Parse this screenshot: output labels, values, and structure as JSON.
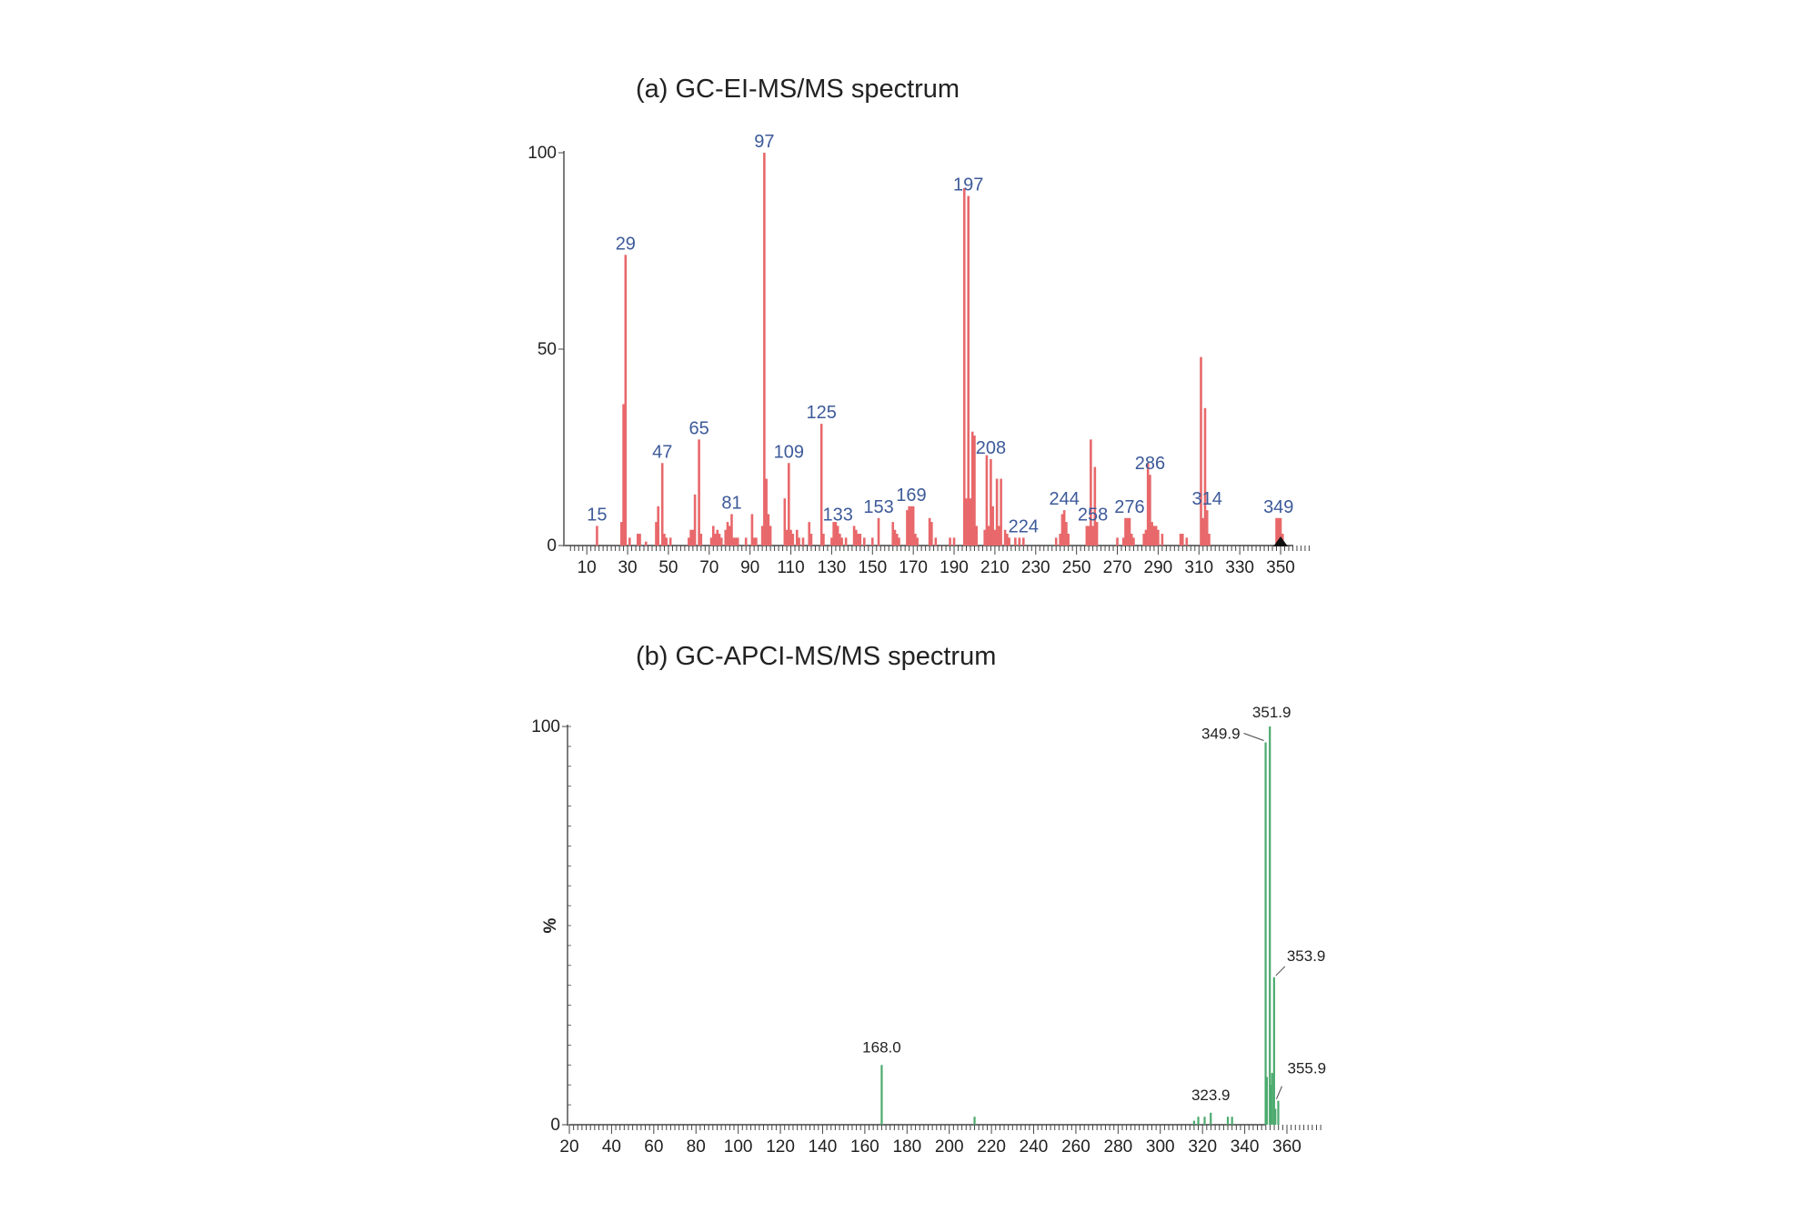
{
  "chart_data": [
    {
      "type": "bar",
      "title": "(a) GC-EI-MS/MS spectrum",
      "xlabel": "",
      "ylabel": "",
      "xlim": [
        1,
        364
      ],
      "ylim": [
        0,
        100
      ],
      "xticks": [
        10,
        30,
        50,
        70,
        90,
        110,
        130,
        150,
        170,
        190,
        210,
        230,
        250,
        270,
        290,
        310,
        330,
        350
      ],
      "yticks": [
        0,
        50,
        100
      ],
      "color": "#e8686b",
      "label_color": "#3d5a99",
      "marker_at": 350,
      "peaks": [
        [
          15,
          5
        ],
        [
          27,
          6
        ],
        [
          28,
          36
        ],
        [
          29,
          74
        ],
        [
          31,
          2
        ],
        [
          35,
          3
        ],
        [
          36,
          3
        ],
        [
          39,
          1
        ],
        [
          44,
          6
        ],
        [
          45,
          10
        ],
        [
          47,
          21
        ],
        [
          48,
          3
        ],
        [
          49,
          2
        ],
        [
          51,
          2
        ],
        [
          60,
          2
        ],
        [
          61,
          4
        ],
        [
          62,
          4
        ],
        [
          63,
          13
        ],
        [
          65,
          27
        ],
        [
          66,
          3
        ],
        [
          71,
          2
        ],
        [
          72,
          5
        ],
        [
          73,
          3
        ],
        [
          74,
          4
        ],
        [
          75,
          3
        ],
        [
          76,
          2
        ],
        [
          78,
          4
        ],
        [
          79,
          6
        ],
        [
          80,
          5
        ],
        [
          81,
          8
        ],
        [
          82,
          2
        ],
        [
          83,
          2
        ],
        [
          84,
          2
        ],
        [
          88,
          2
        ],
        [
          91,
          8
        ],
        [
          92,
          2
        ],
        [
          93,
          2
        ],
        [
          96,
          5
        ],
        [
          97,
          100
        ],
        [
          98,
          17
        ],
        [
          99,
          8
        ],
        [
          100,
          5
        ],
        [
          107,
          12
        ],
        [
          108,
          4
        ],
        [
          109,
          21
        ],
        [
          110,
          4
        ],
        [
          111,
          3
        ],
        [
          113,
          4
        ],
        [
          114,
          2
        ],
        [
          116,
          2
        ],
        [
          119,
          6
        ],
        [
          120,
          3
        ],
        [
          125,
          31
        ],
        [
          126,
          3
        ],
        [
          130,
          2
        ],
        [
          131,
          6
        ],
        [
          132,
          6
        ],
        [
          133,
          5
        ],
        [
          134,
          3
        ],
        [
          135,
          2
        ],
        [
          137,
          2
        ],
        [
          141,
          5
        ],
        [
          142,
          4
        ],
        [
          143,
          3
        ],
        [
          144,
          3
        ],
        [
          146,
          2
        ],
        [
          150,
          2
        ],
        [
          153,
          7
        ],
        [
          160,
          6
        ],
        [
          161,
          4
        ],
        [
          162,
          3
        ],
        [
          163,
          2
        ],
        [
          167,
          9
        ],
        [
          168,
          10
        ],
        [
          169,
          10
        ],
        [
          170,
          10
        ],
        [
          171,
          3
        ],
        [
          172,
          2
        ],
        [
          178,
          7
        ],
        [
          179,
          6
        ],
        [
          181,
          2
        ],
        [
          188,
          2
        ],
        [
          190,
          2
        ],
        [
          195,
          91
        ],
        [
          196,
          12
        ],
        [
          197,
          89
        ],
        [
          198,
          12
        ],
        [
          199,
          29
        ],
        [
          200,
          28
        ],
        [
          201,
          5
        ],
        [
          205,
          4
        ],
        [
          206,
          23
        ],
        [
          207,
          5
        ],
        [
          208,
          22
        ],
        [
          209,
          10
        ],
        [
          210,
          4
        ],
        [
          211,
          17
        ],
        [
          212,
          5
        ],
        [
          213,
          17
        ],
        [
          215,
          4
        ],
        [
          216,
          3
        ],
        [
          217,
          2
        ],
        [
          220,
          2
        ],
        [
          222,
          2
        ],
        [
          224,
          2
        ],
        [
          240,
          2
        ],
        [
          242,
          3
        ],
        [
          243,
          8
        ],
        [
          244,
          9
        ],
        [
          245,
          6
        ],
        [
          246,
          3
        ],
        [
          255,
          5
        ],
        [
          256,
          5
        ],
        [
          257,
          27
        ],
        [
          258,
          5
        ],
        [
          259,
          20
        ],
        [
          260,
          6
        ],
        [
          270,
          2
        ],
        [
          273,
          2
        ],
        [
          274,
          7
        ],
        [
          275,
          7
        ],
        [
          276,
          7
        ],
        [
          277,
          3
        ],
        [
          278,
          2
        ],
        [
          283,
          3
        ],
        [
          284,
          4
        ],
        [
          285,
          21
        ],
        [
          286,
          18
        ],
        [
          287,
          6
        ],
        [
          288,
          5
        ],
        [
          289,
          5
        ],
        [
          290,
          4
        ],
        [
          292,
          3
        ],
        [
          301,
          3
        ],
        [
          302,
          3
        ],
        [
          304,
          2
        ],
        [
          311,
          48
        ],
        [
          312,
          7
        ],
        [
          313,
          35
        ],
        [
          314,
          9
        ],
        [
          315,
          3
        ],
        [
          348,
          7
        ],
        [
          349,
          7
        ],
        [
          350,
          7
        ],
        [
          351,
          3
        ]
      ],
      "labels": [
        {
          "text": "15",
          "x": 15
        },
        {
          "text": "29",
          "x": 29
        },
        {
          "text": "47",
          "x": 47
        },
        {
          "text": "65",
          "x": 65
        },
        {
          "text": "81",
          "x": 81
        },
        {
          "text": "97",
          "x": 97
        },
        {
          "text": "109",
          "x": 109
        },
        {
          "text": "125",
          "x": 125
        },
        {
          "text": "133",
          "x": 133
        },
        {
          "text": "153",
          "x": 153
        },
        {
          "text": "169",
          "x": 169
        },
        {
          "text": "197",
          "x": 197
        },
        {
          "text": "208",
          "x": 208
        },
        {
          "text": "224",
          "x": 224
        },
        {
          "text": "244",
          "x": 244
        },
        {
          "text": "258",
          "x": 258
        },
        {
          "text": "276",
          "x": 276
        },
        {
          "text": "286",
          "x": 286
        },
        {
          "text": "314",
          "x": 314
        },
        {
          "text": "349",
          "x": 349
        }
      ]
    },
    {
      "type": "bar",
      "title": "(b) GC-APCI-MS/MS spectrum",
      "xlabel": "",
      "ylabel": "%",
      "xlim": [
        20,
        376
      ],
      "ylim": [
        0,
        100
      ],
      "xticks": [
        20,
        40,
        60,
        80,
        100,
        120,
        140,
        160,
        180,
        200,
        220,
        240,
        260,
        280,
        300,
        320,
        340,
        360
      ],
      "yticks": [
        0,
        100
      ],
      "color": "#4caa6e",
      "label_color": "#222222",
      "peaks": [
        [
          168.0,
          15
        ],
        [
          212.0,
          2
        ],
        [
          316.0,
          1
        ],
        [
          318.0,
          2
        ],
        [
          321.0,
          2
        ],
        [
          323.9,
          3
        ],
        [
          332.0,
          2
        ],
        [
          334.0,
          2
        ],
        [
          349.9,
          96
        ],
        [
          350.5,
          12
        ],
        [
          351.9,
          100
        ],
        [
          352.5,
          10
        ],
        [
          353.0,
          13
        ],
        [
          353.9,
          37
        ],
        [
          354.5,
          4
        ],
        [
          355.9,
          6
        ]
      ],
      "labels": [
        {
          "text": "168.0",
          "x": 168.0
        },
        {
          "text": "323.9",
          "x": 323.9
        },
        {
          "text": "349.9",
          "x": 349.9
        },
        {
          "text": "351.9",
          "x": 351.9
        },
        {
          "text": "353.9",
          "x": 353.9
        },
        {
          "text": "355.9",
          "x": 355.9
        }
      ]
    }
  ]
}
